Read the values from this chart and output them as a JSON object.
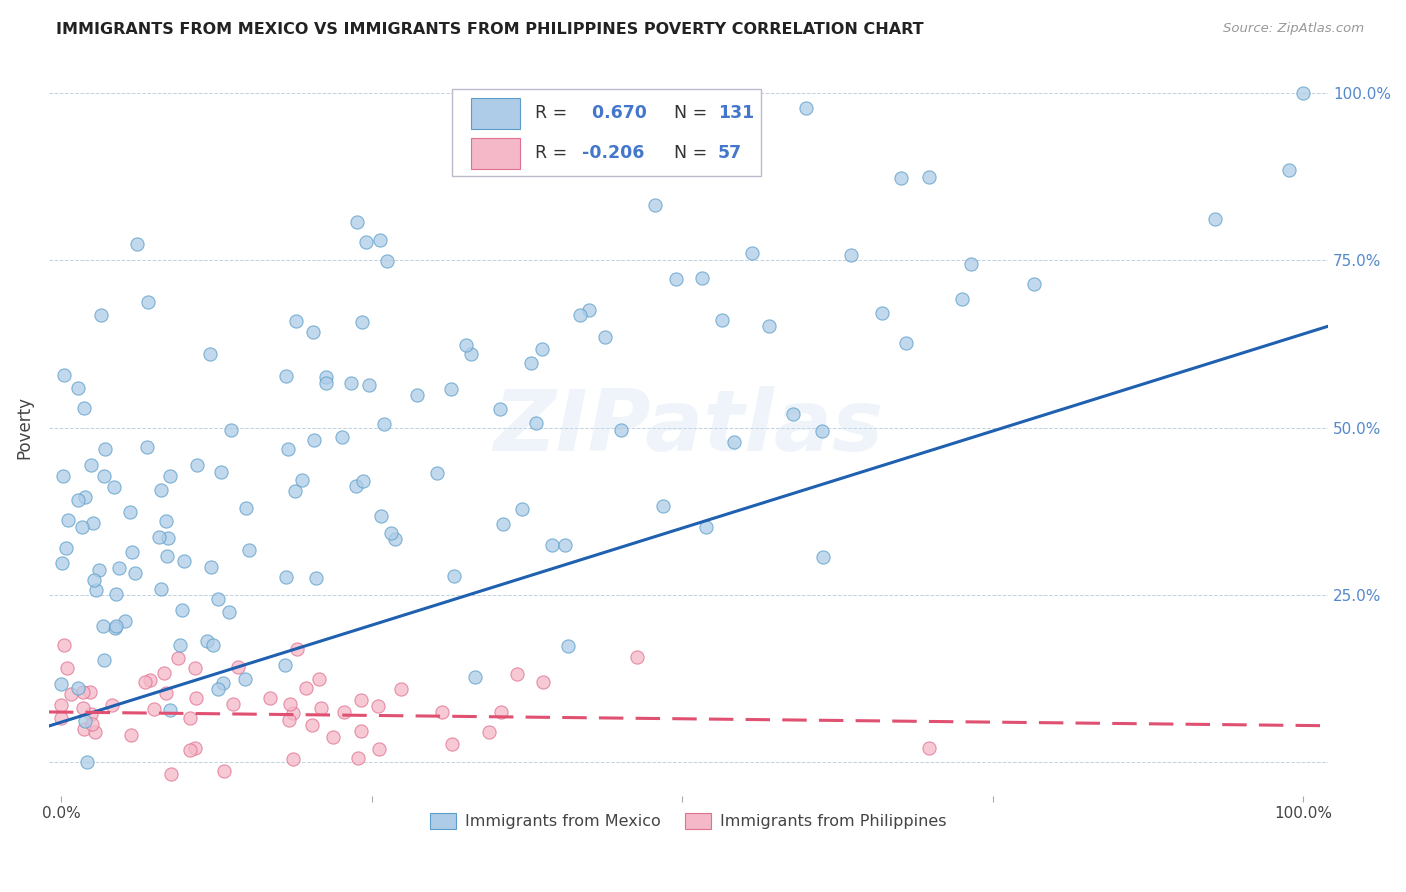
{
  "title": "IMMIGRANTS FROM MEXICO VS IMMIGRANTS FROM PHILIPPINES POVERTY CORRELATION CHART",
  "source": "Source: ZipAtlas.com",
  "ylabel": "Poverty",
  "xlim": [
    -0.01,
    1.02
  ],
  "ylim": [
    -0.05,
    1.05
  ],
  "xticks": [
    0.0,
    0.25,
    0.5,
    0.75,
    1.0
  ],
  "xticklabels": [
    "0.0%",
    "",
    "",
    "",
    "100.0%"
  ],
  "yticks": [
    0.0,
    0.25,
    0.5,
    0.75,
    1.0
  ],
  "yticklabels_right": [
    "",
    "25.0%",
    "50.0%",
    "75.0%",
    "100.0%"
  ],
  "mexico_color": "#aecce8",
  "mexico_edge": "#5b9ec9",
  "philippines_color": "#f5b8c8",
  "philippines_edge": "#e07090",
  "mexico_line_color": "#2060b0",
  "philippines_line_color": "#e05070",
  "mexico_R": 0.67,
  "mexico_N": 131,
  "philippines_R": -0.206,
  "philippines_N": 57,
  "watermark": "ZIPatlas",
  "background_color": "#ffffff",
  "tick_color": "#5588cc",
  "legend_r_color": "#4477cc",
  "legend_n_color": "#4477cc"
}
